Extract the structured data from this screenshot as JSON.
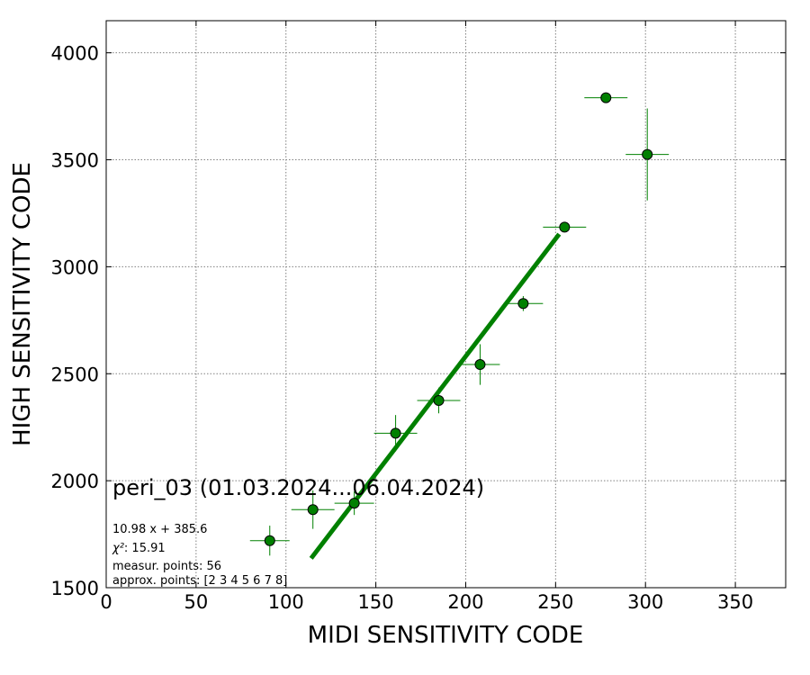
{
  "chart_data": {
    "type": "scatter",
    "title": "peri_03 (01.03.2024...06.04.2024)",
    "xlabel": "MIDI SENSITIVITY CODE",
    "ylabel": "HIGH SENSITIVITY CODE",
    "xlim": [
      0,
      378
    ],
    "ylim": [
      1500,
      4150
    ],
    "xticks": [
      0,
      50,
      100,
      150,
      200,
      250,
      300,
      350
    ],
    "yticks": [
      1500,
      2000,
      2500,
      3000,
      3500,
      4000
    ],
    "grid": true,
    "points": [
      {
        "x": 91,
        "y": 1720,
        "xerr": 11,
        "yerr": 70
      },
      {
        "x": 115,
        "y": 1865,
        "xerr": 12,
        "yerr": 90
      },
      {
        "x": 138,
        "y": 1895,
        "xerr": 11,
        "yerr": 55
      },
      {
        "x": 161,
        "y": 2222,
        "xerr": 12,
        "yerr": 85
      },
      {
        "x": 185,
        "y": 2375,
        "xerr": 12,
        "yerr": 60
      },
      {
        "x": 208,
        "y": 2543,
        "xerr": 11,
        "yerr": 95
      },
      {
        "x": 232,
        "y": 2828,
        "xerr": 11,
        "yerr": 35
      },
      {
        "x": 255,
        "y": 3185,
        "xerr": 12,
        "yerr": 0
      },
      {
        "x": 278,
        "y": 3790,
        "xerr": 12,
        "yerr": 0
      },
      {
        "x": 301,
        "y": 3525,
        "xerr": 12,
        "yerr": 215
      }
    ],
    "fit_line": {
      "slope": 10.98,
      "intercept": 385.6,
      "x_start": 114,
      "x_end": 252
    },
    "annotations": {
      "equation": "10.98 x + 385.6",
      "chi2_label": "χ²",
      "chi2_value": ": 15.91",
      "measur_points": "measur. points: 56",
      "approx_points": "approx. points: [2 3 4 5 6 7 8]"
    },
    "colors": {
      "marker": "#008000",
      "fit": "#008000",
      "grid": "#808080"
    }
  }
}
